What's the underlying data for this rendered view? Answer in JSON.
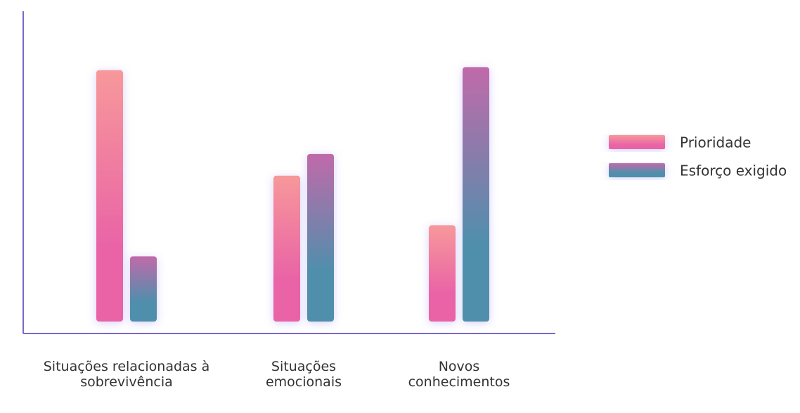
{
  "chart_data": {
    "type": "bar",
    "categories": [
      "Situações relacionadas à sobrevivência",
      "Situações emocionais",
      "Novos conhecimentos"
    ],
    "series": [
      {
        "name": "Prioridade",
        "color": [
          "#f7989a",
          "#e964a6"
        ],
        "values": [
          81,
          47,
          31
        ]
      },
      {
        "name": "Esforço exigido",
        "color": [
          "#c06aaa",
          "#4f8fac"
        ],
        "values": [
          21,
          54,
          82
        ]
      }
    ],
    "ylim": [
      0,
      100
    ]
  }
}
